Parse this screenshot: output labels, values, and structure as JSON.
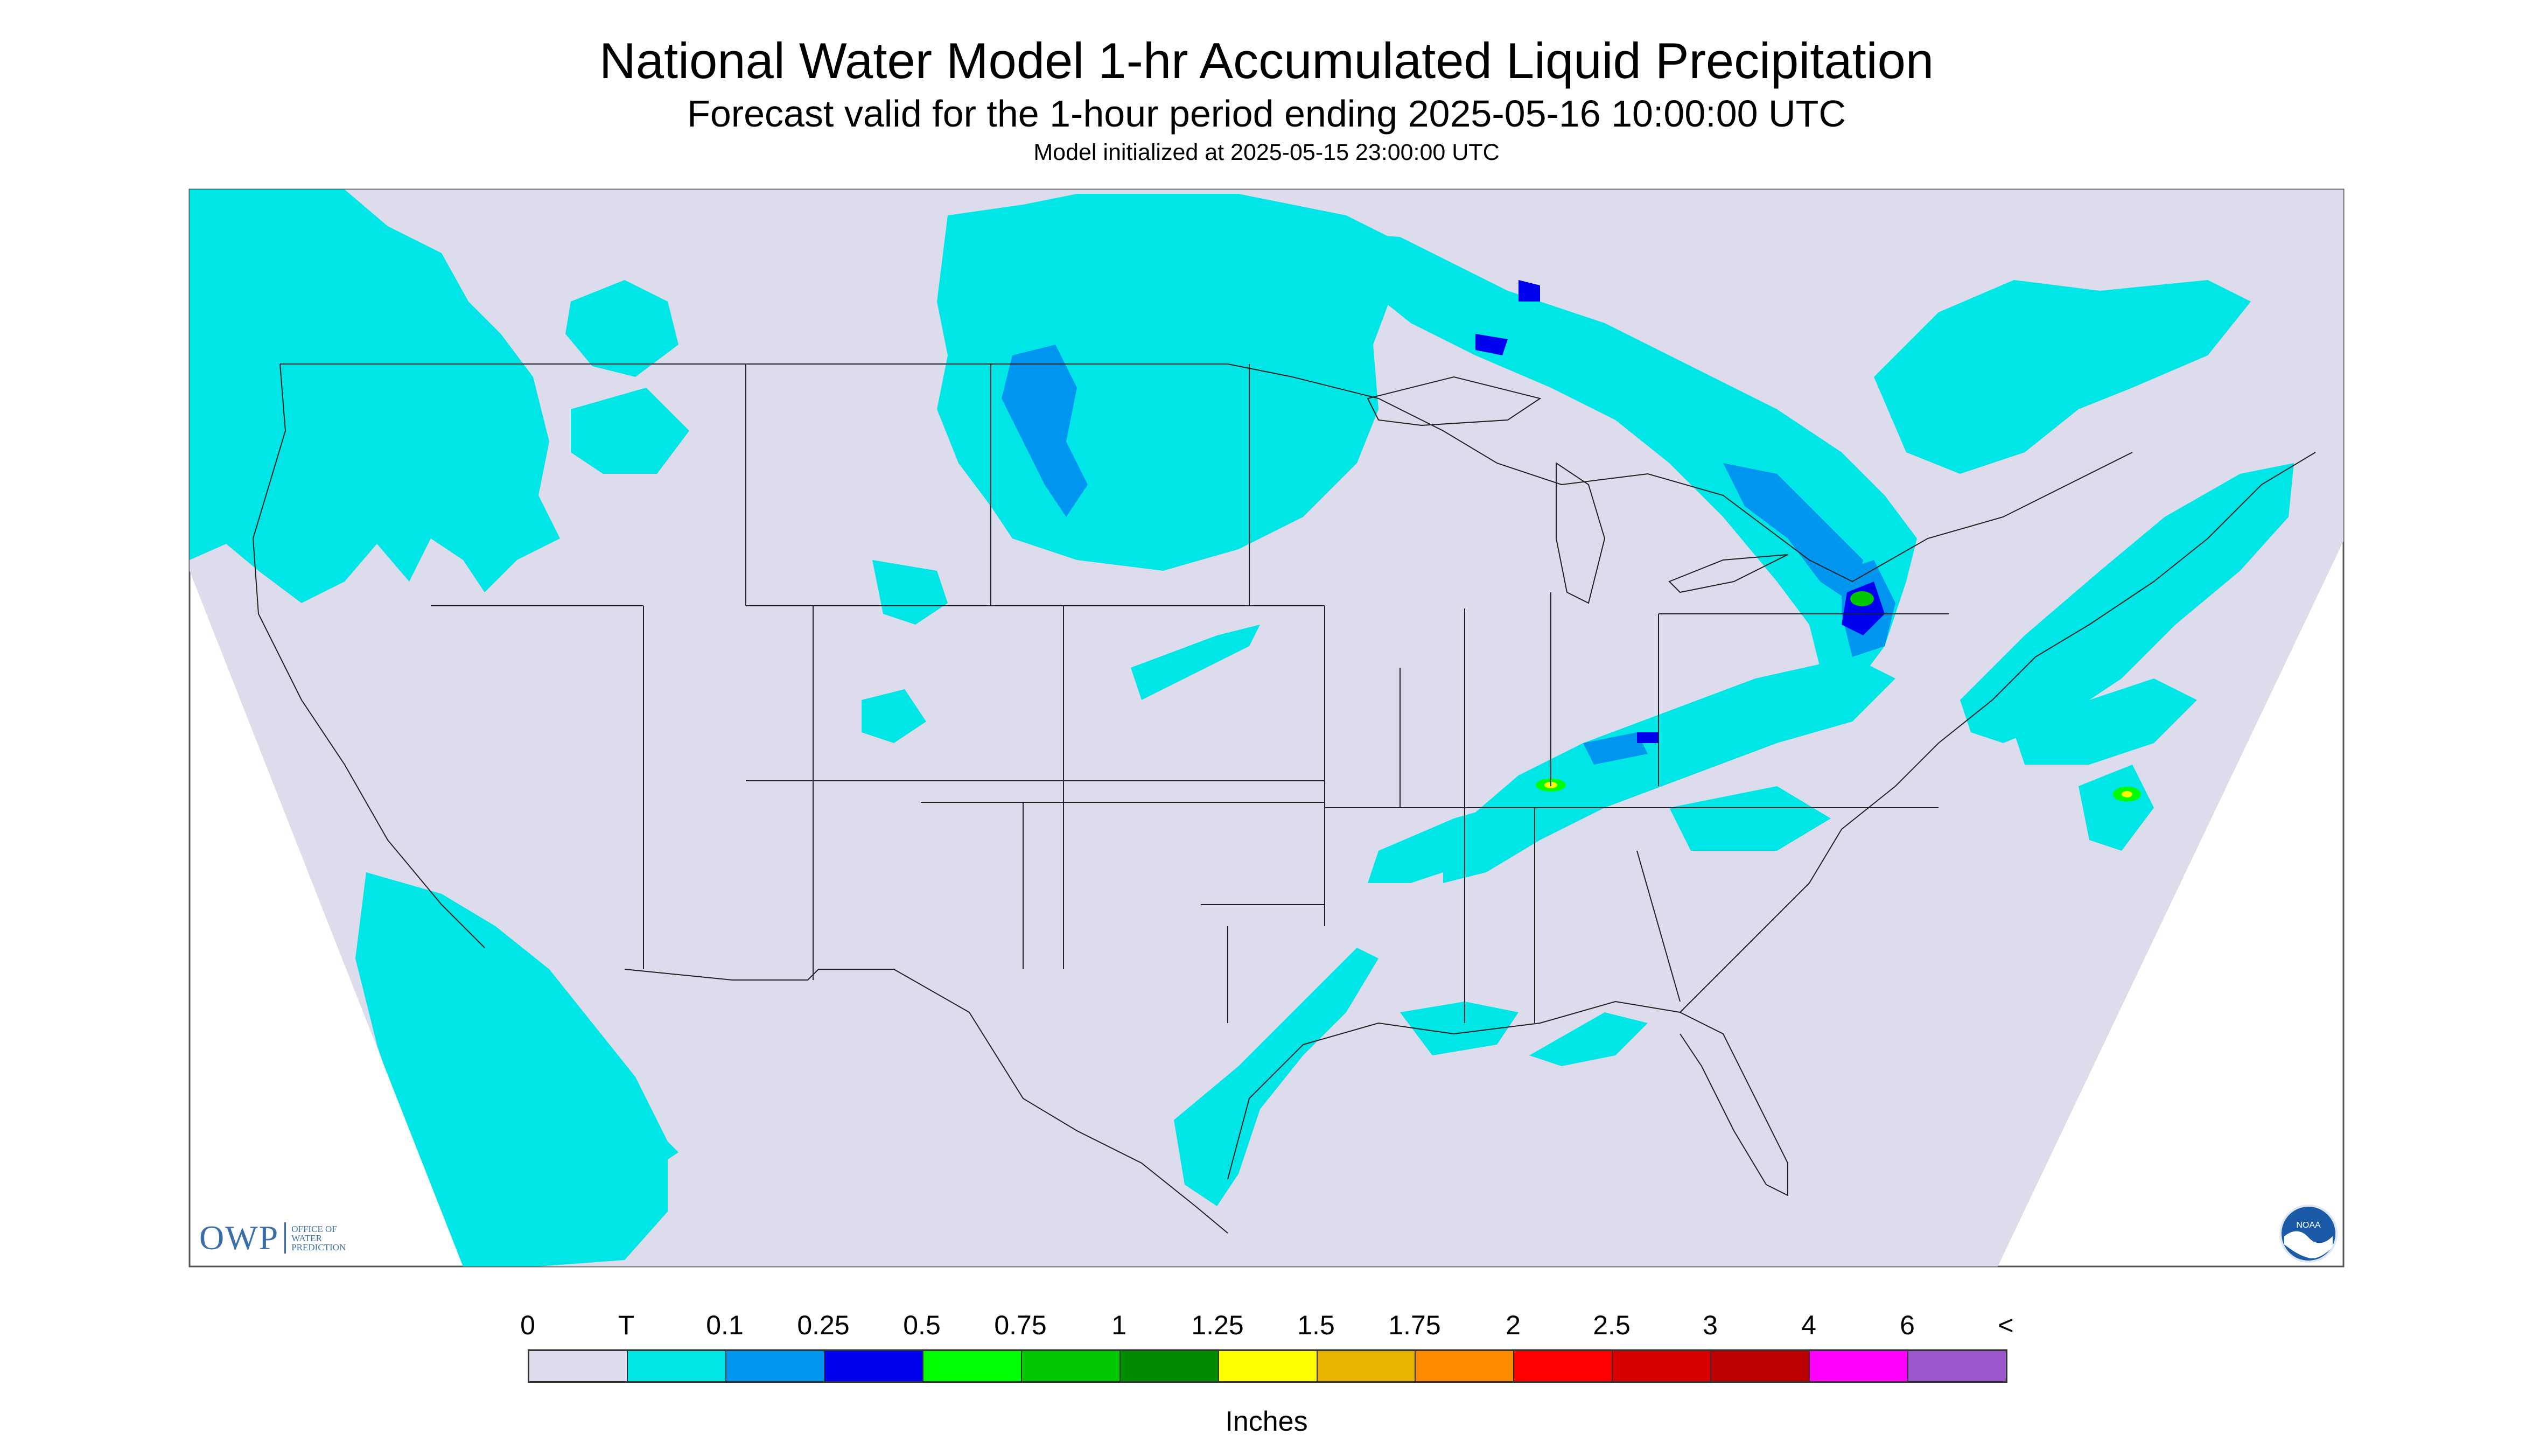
{
  "title": "National Water Model 1-hr Accumulated Liquid Precipitation",
  "subtitle": "Forecast valid for the 1-hour period ending 2025-05-16 10:00:00 UTC",
  "init_text": "Model initialized at 2025-05-15 23:00:00 UTC",
  "background_color": "#dcdcec",
  "logos": {
    "owp_mark": "OWP",
    "owp_text": [
      "Office of",
      "Water",
      "Prediction"
    ],
    "noaa_text": "NOAA"
  },
  "legend": {
    "labels": [
      "0",
      "T",
      "0.1",
      "0.25",
      "0.5",
      "0.75",
      "1",
      "1.25",
      "1.5",
      "1.75",
      "2",
      "2.5",
      "3",
      "4",
      "6",
      "<"
    ],
    "colors": [
      "#dcdcec",
      "#00e6e6",
      "#0096f0",
      "#0000f0",
      "#00ff00",
      "#00c800",
      "#008c00",
      "#ffff00",
      "#e6b400",
      "#ff8c00",
      "#ff0000",
      "#d80000",
      "#bc0000",
      "#ff00ff",
      "#9955cc"
    ],
    "units": "Inches"
  }
}
